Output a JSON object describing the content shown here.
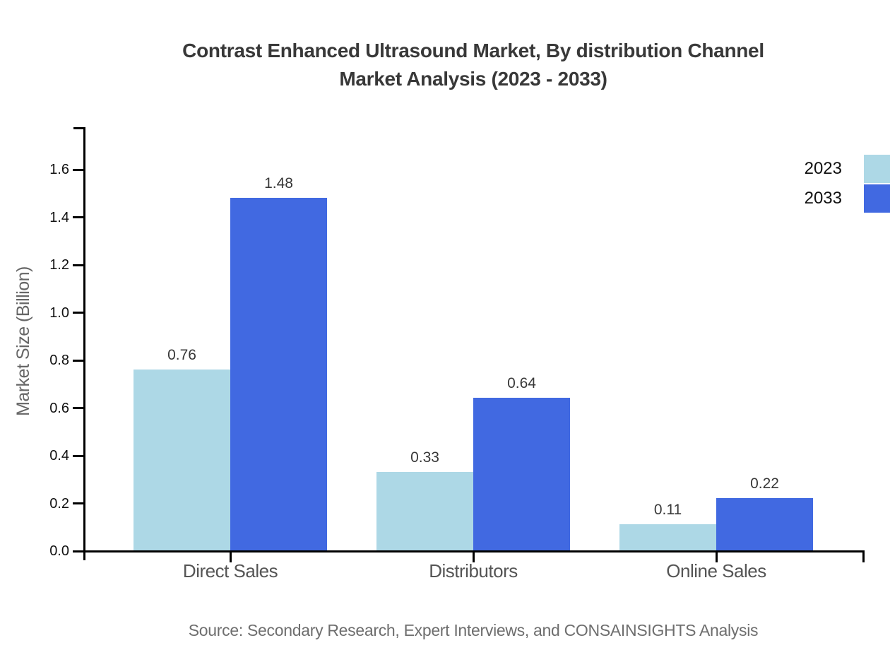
{
  "title": {
    "line1": "Contrast Enhanced Ultrasound Market, By distribution Channel",
    "line2": "Market Analysis (2023 - 2033)"
  },
  "source": "Source: Secondary Research, Expert Interviews, and CONSAINSIGHTS Analysis",
  "chart_data": {
    "type": "bar",
    "categories": [
      "Direct Sales",
      "Distributors",
      "Online Sales"
    ],
    "series": [
      {
        "name": "2023",
        "color": "#ADD8E6",
        "values": [
          0.76,
          0.33,
          0.11
        ]
      },
      {
        "name": "2033",
        "color": "#4169E1",
        "values": [
          1.48,
          0.64,
          0.22
        ]
      }
    ],
    "title": "Contrast Enhanced Ultrasound Market, By distribution Channel Market Analysis (2023 - 2033)",
    "xlabel": "",
    "ylabel": "Market Size (Billion)",
    "yticks": [
      0.0,
      0.2,
      0.4,
      0.6,
      0.8,
      1.0,
      1.2,
      1.4,
      1.6
    ],
    "ylim": [
      0,
      1.78
    ],
    "grid": false,
    "legend_position": "top-right",
    "value_labels": true,
    "axis_color": "#000000"
  }
}
